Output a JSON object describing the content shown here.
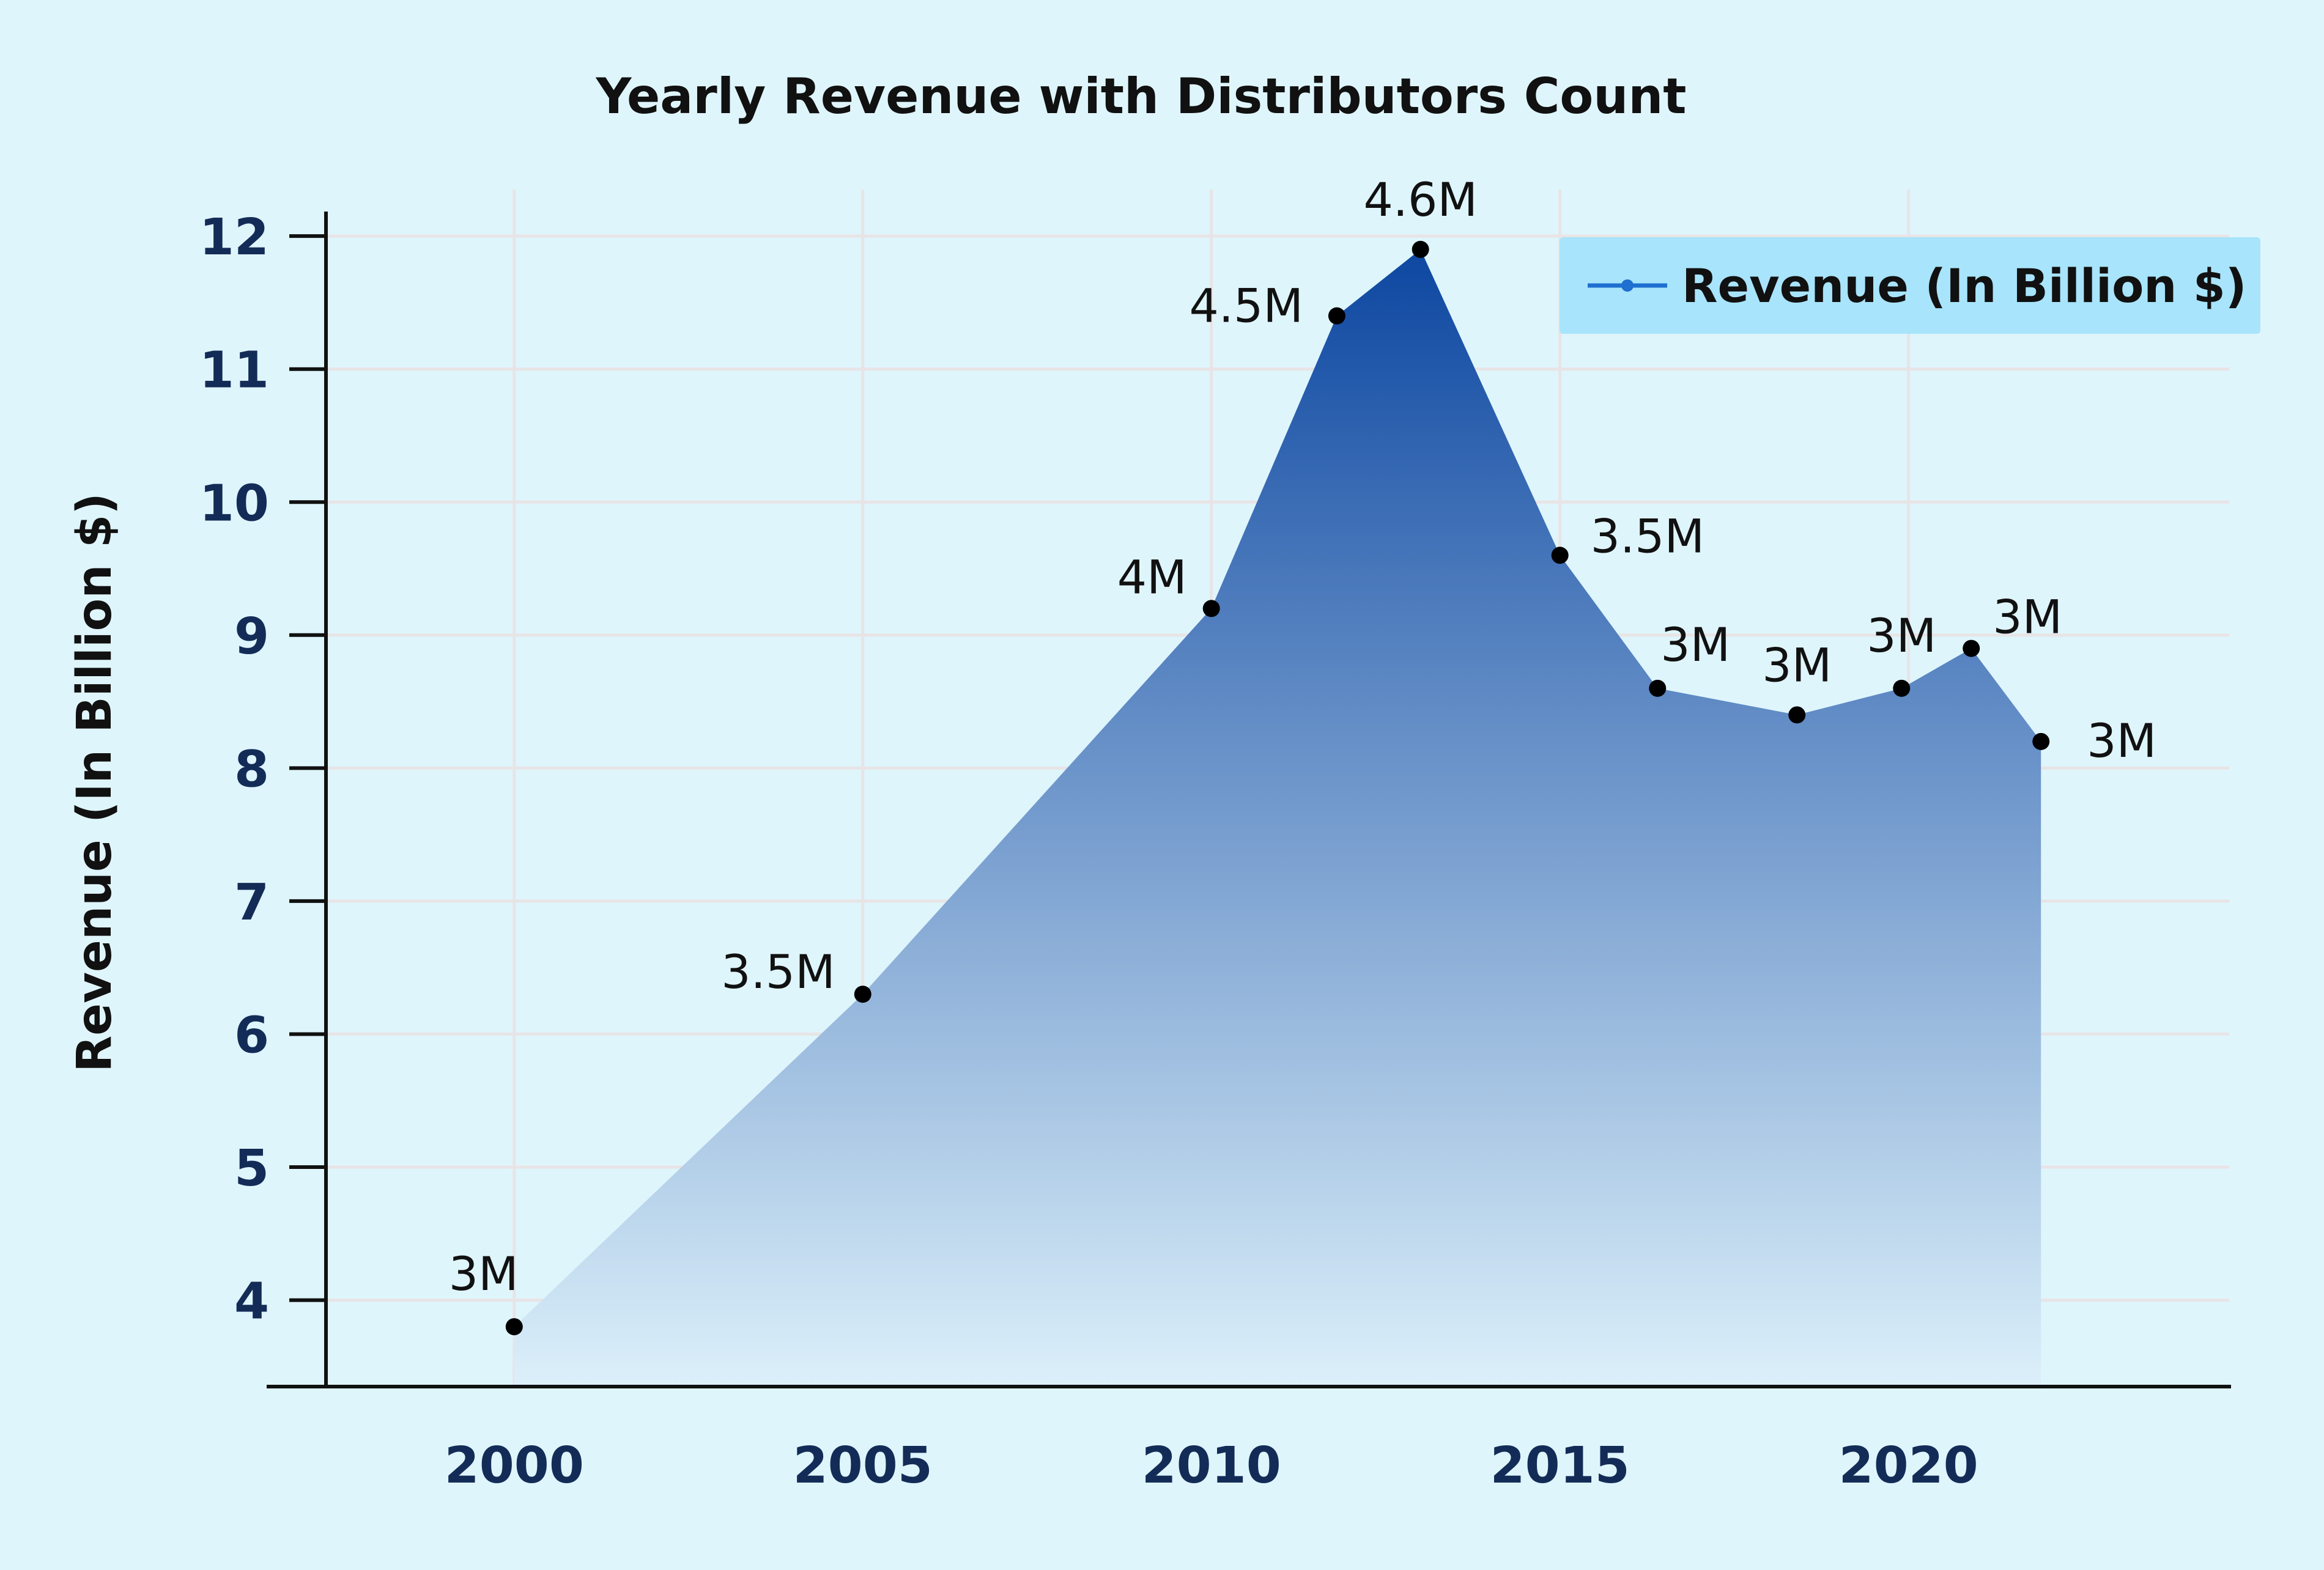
{
  "chart_data": {
    "type": "area",
    "title": "Yearly Revenue with Distributors Count",
    "xlabel": "",
    "ylabel": "Revenue (In Billion $)",
    "xlim": [
      1997.3,
      2024.6
    ],
    "ylim": [
      3.35,
      12.35
    ],
    "x_ticks": [
      2000,
      2005,
      2010,
      2015,
      2020
    ],
    "y_ticks": [
      4,
      5,
      6,
      7,
      8,
      9,
      10,
      11,
      12
    ],
    "grid": true,
    "legend_position": "top-right",
    "series": [
      {
        "name": "Revenue (In Billion $)",
        "x": [
          2000,
          2005,
          2010,
          2011.8,
          2013,
          2015,
          2016.4,
          2018.4,
          2019.9,
          2020.9,
          2021.9
        ],
        "values": [
          3.8,
          6.3,
          9.2,
          11.4,
          11.9,
          9.6,
          8.6,
          8.4,
          8.6,
          8.9,
          8.2
        ],
        "labels": [
          "3M",
          "3.5M",
          "4M",
          "4.5M",
          "4.6M",
          "3.5M",
          "3M",
          "3M",
          "3M",
          "3M",
          "3M"
        ]
      }
    ],
    "colors": {
      "background": "#dff5fc",
      "fill_top": "#0d47a1",
      "fill_bottom": "#dcf0fa",
      "marker": "#000000",
      "legend_bg": "#a8e4fb",
      "legend_line": "#1e6fd0",
      "grid": "#e8e4e6",
      "tick_label": "#132c57"
    }
  }
}
